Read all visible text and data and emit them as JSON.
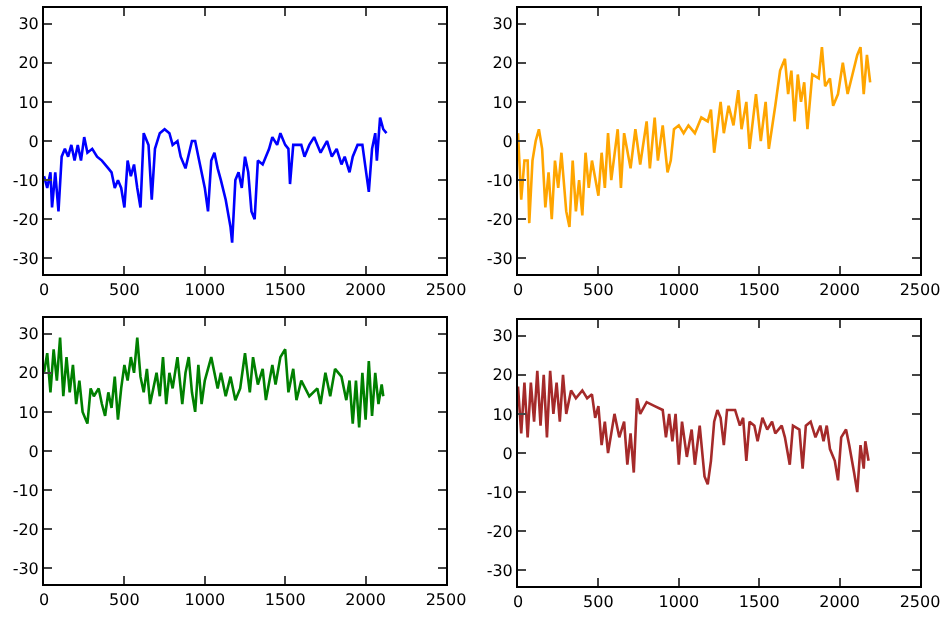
{
  "chart_data": [
    {
      "type": "line",
      "xlim": [
        0,
        2500
      ],
      "xticks": [
        0,
        500,
        1000,
        1500,
        2000,
        2500
      ],
      "ylim": [
        -34,
        34
      ],
      "yticks": [
        -30,
        -20,
        -10,
        0,
        10,
        20,
        30
      ],
      "grid": false,
      "marker": "none",
      "line_style": "solid",
      "x": [
        0,
        20,
        40,
        50,
        70,
        90,
        110,
        130,
        150,
        170,
        190,
        210,
        230,
        250,
        270,
        300,
        330,
        360,
        400,
        420,
        440,
        460,
        480,
        500,
        520,
        540,
        560,
        580,
        600,
        620,
        650,
        670,
        690,
        720,
        750,
        780,
        800,
        830,
        850,
        880,
        920,
        940,
        960,
        980,
        1000,
        1020,
        1040,
        1060,
        1080,
        1100,
        1130,
        1160,
        1170,
        1190,
        1210,
        1230,
        1250,
        1270,
        1290,
        1310,
        1330,
        1360,
        1400,
        1420,
        1450,
        1470,
        1500,
        1520,
        1530,
        1550,
        1600,
        1620,
        1650,
        1680,
        1700,
        1720,
        1760,
        1790,
        1820,
        1850,
        1870,
        1900,
        1920,
        1950,
        1980,
        2000,
        2020,
        2040,
        2060,
        2070,
        2090,
        2110,
        2130
      ],
      "series": [
        {
          "color": "#0000ff",
          "values": [
            -9,
            -12,
            -8,
            -17,
            -8,
            -18,
            -4,
            -2,
            -4,
            -1,
            -5,
            -1,
            -5,
            1,
            -3,
            -2,
            -4,
            -5,
            -7,
            -8,
            -12,
            -10,
            -12,
            -17,
            -5,
            -9,
            -6,
            -12,
            -17,
            2,
            -1,
            -15,
            -2,
            2,
            3,
            2,
            -1,
            0,
            -4,
            -7,
            0,
            0,
            -4,
            -8,
            -12,
            -18,
            -5,
            -3,
            -7,
            -10,
            -15,
            -22,
            -26,
            -10,
            -8,
            -12,
            -4,
            -8,
            -18,
            -20,
            -5,
            -6,
            -2,
            1,
            -1,
            2,
            -1,
            -2,
            -11,
            -1,
            -1,
            -4,
            -1,
            1,
            -1,
            -3,
            0,
            -4,
            -2,
            -6,
            -4,
            -8,
            -4,
            -1,
            -1,
            -7,
            -13,
            -2,
            2,
            -5,
            6,
            3,
            2
          ]
        }
      ]
    },
    {
      "type": "line",
      "xlim": [
        0,
        2500
      ],
      "xticks": [
        0,
        500,
        1000,
        1500,
        2000,
        2500
      ],
      "ylim": [
        -34,
        34
      ],
      "yticks": [
        -30,
        -20,
        -10,
        0,
        10,
        20,
        30
      ],
      "grid": false,
      "marker": "none",
      "line_style": "solid",
      "x": [
        0,
        20,
        40,
        60,
        70,
        90,
        110,
        130,
        150,
        170,
        190,
        210,
        230,
        250,
        270,
        300,
        320,
        340,
        360,
        380,
        400,
        420,
        440,
        460,
        500,
        520,
        540,
        560,
        580,
        620,
        640,
        660,
        700,
        730,
        760,
        800,
        820,
        850,
        870,
        900,
        930,
        950,
        970,
        1000,
        1030,
        1060,
        1100,
        1140,
        1180,
        1200,
        1220,
        1260,
        1280,
        1310,
        1340,
        1370,
        1390,
        1420,
        1440,
        1480,
        1510,
        1540,
        1560,
        1600,
        1630,
        1660,
        1680,
        1700,
        1720,
        1740,
        1760,
        1780,
        1800,
        1830,
        1870,
        1890,
        1910,
        1940,
        1960,
        1990,
        2020,
        2050,
        2080,
        2110,
        2130,
        2150,
        2170,
        2190
      ],
      "series": [
        {
          "color": "#ffa500",
          "values": [
            2,
            -15,
            -5,
            -5,
            -21,
            -5,
            0,
            3,
            -2,
            -17,
            -8,
            -20,
            -5,
            -12,
            -3,
            -18,
            -22,
            -5,
            -18,
            -10,
            -19,
            -3,
            -12,
            -5,
            -14,
            -3,
            -12,
            2,
            -10,
            3,
            -12,
            2,
            -7,
            3,
            -6,
            5,
            -7,
            6,
            -5,
            4,
            -8,
            -5,
            3,
            4,
            2,
            4,
            2,
            6,
            5,
            8,
            -3,
            10,
            2,
            9,
            4,
            13,
            3,
            10,
            -2,
            12,
            0,
            10,
            -2,
            9,
            18,
            21,
            12,
            18,
            5,
            17,
            10,
            15,
            3,
            17,
            16,
            24,
            14,
            16,
            9,
            12,
            20,
            12,
            17,
            22,
            24,
            12,
            22,
            15
          ]
        }
      ]
    },
    {
      "type": "line",
      "xlim": [
        0,
        2500
      ],
      "xticks": [
        0,
        500,
        1000,
        1500,
        2000,
        2500
      ],
      "ylim": [
        -34,
        34
      ],
      "yticks": [
        -30,
        -20,
        -10,
        0,
        10,
        20,
        30
      ],
      "grid": false,
      "marker": "none",
      "line_style": "solid",
      "x": [
        0,
        20,
        40,
        60,
        80,
        100,
        120,
        140,
        160,
        180,
        200,
        220,
        240,
        270,
        290,
        310,
        340,
        360,
        380,
        400,
        420,
        440,
        460,
        480,
        500,
        520,
        540,
        560,
        580,
        600,
        620,
        640,
        660,
        700,
        720,
        740,
        760,
        780,
        800,
        830,
        860,
        880,
        900,
        920,
        940,
        960,
        980,
        1000,
        1040,
        1080,
        1100,
        1130,
        1160,
        1190,
        1220,
        1250,
        1280,
        1300,
        1330,
        1360,
        1380,
        1420,
        1440,
        1470,
        1500,
        1520,
        1550,
        1570,
        1600,
        1650,
        1700,
        1720,
        1750,
        1780,
        1810,
        1850,
        1880,
        1900,
        1920,
        1940,
        1960,
        1980,
        2000,
        2020,
        2040,
        2060,
        2080,
        2100,
        2110
      ],
      "series": [
        {
          "color": "#008000",
          "values": [
            20,
            25,
            15,
            26,
            18,
            29,
            14,
            24,
            15,
            22,
            12,
            18,
            10,
            7,
            16,
            14,
            16,
            12,
            9,
            15,
            11,
            19,
            8,
            16,
            22,
            18,
            24,
            20,
            29,
            19,
            15,
            21,
            12,
            20,
            14,
            24,
            12,
            20,
            16,
            24,
            12,
            20,
            24,
            15,
            10,
            22,
            12,
            18,
            24,
            16,
            20,
            14,
            19,
            13,
            16,
            25,
            15,
            24,
            17,
            21,
            13,
            22,
            17,
            24,
            26,
            15,
            21,
            13,
            18,
            14,
            16,
            12,
            20,
            14,
            21,
            19,
            13,
            18,
            7,
            18,
            6,
            20,
            8,
            23,
            9,
            20,
            12,
            17,
            14
          ]
        }
      ]
    },
    {
      "type": "line",
      "xlim": [
        0,
        2500
      ],
      "xticks": [
        0,
        500,
        1000,
        1500,
        2000,
        2500
      ],
      "ylim": [
        -34,
        34
      ],
      "yticks": [
        -30,
        -20,
        -10,
        0,
        10,
        20,
        30
      ],
      "grid": false,
      "marker": "none",
      "line_style": "solid",
      "x": [
        0,
        20,
        40,
        60,
        80,
        100,
        120,
        140,
        160,
        180,
        200,
        220,
        240,
        260,
        280,
        300,
        330,
        360,
        400,
        430,
        460,
        480,
        500,
        520,
        540,
        560,
        600,
        630,
        660,
        680,
        700,
        720,
        740,
        760,
        800,
        850,
        900,
        920,
        940,
        960,
        980,
        1000,
        1020,
        1050,
        1080,
        1100,
        1130,
        1160,
        1180,
        1200,
        1220,
        1240,
        1260,
        1280,
        1300,
        1350,
        1380,
        1400,
        1420,
        1440,
        1470,
        1490,
        1520,
        1550,
        1580,
        1600,
        1640,
        1660,
        1690,
        1710,
        1750,
        1770,
        1790,
        1820,
        1850,
        1880,
        1900,
        1920,
        1940,
        1970,
        1990,
        2010,
        2040,
        2060,
        2090,
        2110,
        2130,
        2150,
        2160,
        2180
      ],
      "series": [
        {
          "color": "#a52a2a",
          "values": [
            17,
            5,
            18,
            4,
            18,
            8,
            21,
            7,
            20,
            4,
            21,
            10,
            18,
            8,
            20,
            10,
            16,
            14,
            16,
            14,
            15,
            9,
            12,
            2,
            8,
            0,
            10,
            4,
            8,
            -3,
            5,
            -5,
            14,
            10,
            13,
            12,
            11,
            4,
            10,
            3,
            10,
            -3,
            8,
            -1,
            6,
            -3,
            7,
            -6,
            -8,
            -2,
            8,
            11,
            9,
            2,
            11,
            11,
            7,
            9,
            -2,
            8,
            7,
            3,
            9,
            6,
            8,
            5,
            7,
            4,
            -3,
            7,
            6,
            -4,
            7,
            8,
            4,
            7,
            3,
            7,
            1,
            -2,
            -7,
            4,
            6,
            2,
            -5,
            -10,
            2,
            -4,
            3,
            -2
          ]
        }
      ]
    }
  ]
}
